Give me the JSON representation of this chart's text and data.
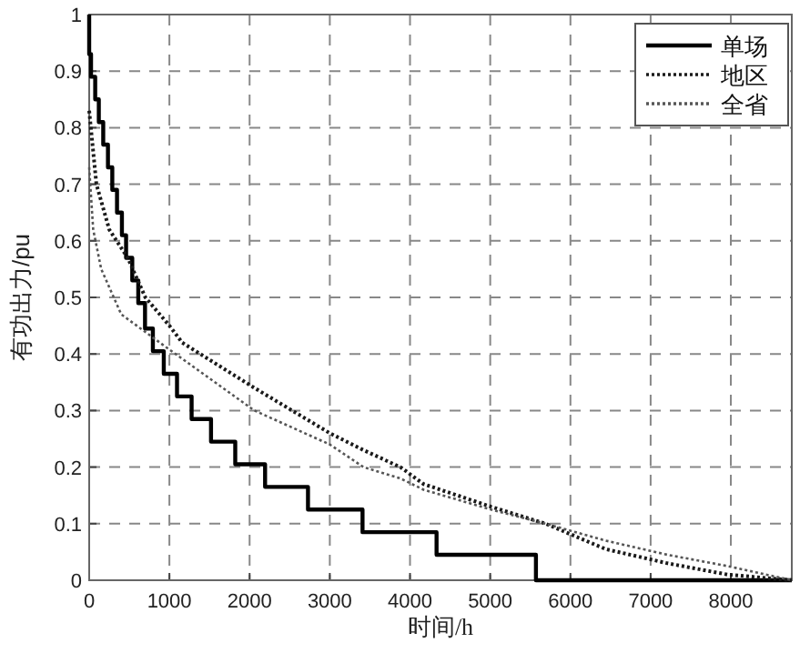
{
  "chart_data": {
    "type": "line",
    "xlabel": "时间/h",
    "ylabel": "有功出力/pu",
    "xlim": [
      0,
      8760
    ],
    "xticks": [
      0,
      1000,
      2000,
      3000,
      4000,
      5000,
      6000,
      7000,
      8000
    ],
    "ylim": [
      0,
      1
    ],
    "yticks": [
      0,
      0.1,
      0.2,
      0.3,
      0.4,
      0.5,
      0.6,
      0.7,
      0.8,
      0.9,
      1
    ],
    "grid": true,
    "legend": "top right",
    "series": [
      {
        "name": "单场",
        "type": "step",
        "color": "#000000",
        "line_style": "solid",
        "x": [
          0,
          0,
          23,
          75,
          120,
          175,
          234,
          288,
          347,
          408,
          460,
          537,
          612,
          696,
          794,
          930,
          1095,
          1277,
          1519,
          1821,
          2193,
          2728,
          3408,
          4331,
          5570,
          8760
        ],
        "values": [
          1,
          0.93,
          0.89,
          0.85,
          0.81,
          0.77,
          0.73,
          0.69,
          0.65,
          0.61,
          0.57,
          0.53,
          0.49,
          0.445,
          0.405,
          0.365,
          0.325,
          0.285,
          0.245,
          0.205,
          0.165,
          0.125,
          0.085,
          0.045,
          0,
          0
        ]
      },
      {
        "name": "地区",
        "color": "#1a1a1a",
        "line_style": "dotted",
        "x": [
          0,
          90,
          250,
          480,
          700,
          1000,
          1160,
          2060,
          3000,
          3420,
          3880,
          4170,
          5010,
          5690,
          6440,
          7210,
          7960,
          8760
        ],
        "values": [
          0.83,
          0.7,
          0.62,
          0.57,
          0.5,
          0.45,
          0.42,
          0.34,
          0.26,
          0.23,
          0.2,
          0.17,
          0.13,
          0.1,
          0.055,
          0.03,
          0.01,
          0
        ]
      },
      {
        "name": "全省",
        "color": "#555555",
        "line_style": "dotted",
        "x": [
          0,
          50,
          150,
          400,
          930,
          2060,
          3000,
          3420,
          3880,
          4170,
          5010,
          5690,
          6440,
          7210,
          7960,
          8760
        ],
        "values": [
          0.73,
          0.62,
          0.55,
          0.47,
          0.415,
          0.3,
          0.24,
          0.2,
          0.18,
          0.16,
          0.125,
          0.1,
          0.07,
          0.045,
          0.025,
          0
        ]
      }
    ]
  }
}
